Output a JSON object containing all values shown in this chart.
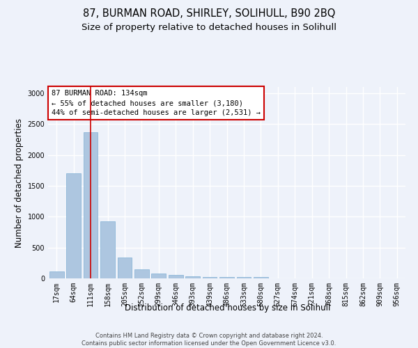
{
  "title_line1": "87, BURMAN ROAD, SHIRLEY, SOLIHULL, B90 2BQ",
  "title_line2": "Size of property relative to detached houses in Solihull",
  "xlabel": "Distribution of detached houses by size in Solihull",
  "ylabel": "Number of detached properties",
  "footnote": "Contains HM Land Registry data © Crown copyright and database right 2024.\nContains public sector information licensed under the Open Government Licence v3.0.",
  "bar_labels": [
    "17sqm",
    "64sqm",
    "111sqm",
    "158sqm",
    "205sqm",
    "252sqm",
    "299sqm",
    "346sqm",
    "393sqm",
    "439sqm",
    "486sqm",
    "533sqm",
    "580sqm",
    "627sqm",
    "674sqm",
    "721sqm",
    "768sqm",
    "815sqm",
    "862sqm",
    "909sqm",
    "956sqm"
  ],
  "bar_values": [
    110,
    1700,
    2370,
    920,
    340,
    150,
    75,
    55,
    30,
    20,
    20,
    20,
    25,
    0,
    0,
    0,
    0,
    0,
    0,
    0,
    0
  ],
  "bar_color": "#adc6e0",
  "bar_edge_color": "#7eafd4",
  "highlight_bar_index": 2,
  "highlight_line_color": "#cc0000",
  "annotation_text": "87 BURMAN ROAD: 134sqm\n← 55% of detached houses are smaller (3,180)\n44% of semi-detached houses are larger (2,531) →",
  "annotation_box_facecolor": "white",
  "annotation_box_edgecolor": "#cc0000",
  "ylim": [
    0,
    3100
  ],
  "yticks": [
    0,
    500,
    1000,
    1500,
    2000,
    2500,
    3000
  ],
  "bg_color": "#eef2fa",
  "axes_bg_color": "#eef2fa",
  "grid_color": "#ffffff",
  "title_fontsize": 10.5,
  "subtitle_fontsize": 9.5,
  "tick_fontsize": 7,
  "ylabel_fontsize": 8.5,
  "xlabel_fontsize": 8.5,
  "annotation_fontsize": 7.5,
  "footnote_fontsize": 6
}
